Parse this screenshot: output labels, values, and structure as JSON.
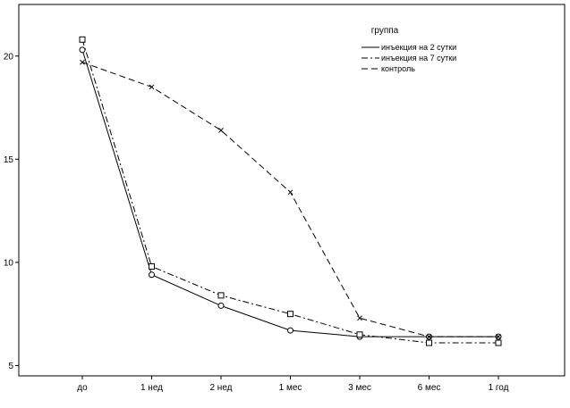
{
  "chart_data": {
    "type": "line",
    "categories": [
      "до",
      "1 нед",
      "2 нед",
      "1 мес",
      "3 мес",
      "6 мес",
      "1 год"
    ],
    "yticks": [
      5,
      10,
      15,
      20
    ],
    "ylim": [
      4.5,
      22.5
    ],
    "grid": false,
    "legend": {
      "title": "группа",
      "placement": "top-right"
    },
    "series": [
      {
        "name": "инъекция на 2 сутки",
        "marker": "circle",
        "dash": "solid",
        "values": [
          20.3,
          9.4,
          7.9,
          6.7,
          6.4,
          6.4,
          6.4
        ]
      },
      {
        "name": "инъекция на 7 сутки",
        "marker": "square",
        "dash": "dashdot",
        "values": [
          20.8,
          9.8,
          8.4,
          7.5,
          6.5,
          6.1,
          6.1
        ]
      },
      {
        "name": "контроль",
        "marker": "x",
        "dash": "dashed",
        "values": [
          19.7,
          18.5,
          16.4,
          13.4,
          7.3,
          6.4,
          6.4
        ]
      }
    ],
    "colors": {
      "line": "#000000",
      "background": "#ffffff"
    }
  }
}
